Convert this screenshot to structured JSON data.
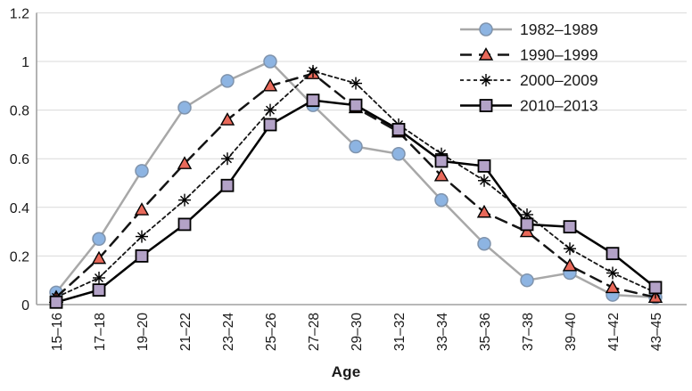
{
  "chart_data": {
    "type": "line",
    "title": "",
    "xlabel": "Age",
    "ylabel": "",
    "ylim": [
      0,
      1.2
    ],
    "ytick_labels": [
      "0",
      "0.2",
      "0.4",
      "0.6",
      "0.8",
      "1",
      "1.2"
    ],
    "yticks": [
      0,
      0.2,
      0.4,
      0.6,
      0.8,
      1,
      1.2
    ],
    "grid": "horizontal",
    "legend_position": "top-right",
    "categories": [
      "15–16",
      "17–18",
      "19–20",
      "21–22",
      "23–24",
      "25–26",
      "27–28",
      "29–30",
      "31–32",
      "33–34",
      "35–36",
      "37–38",
      "39–40",
      "41–42",
      "43–45"
    ],
    "series": [
      {
        "name": "1982–1989",
        "values": [
          0.05,
          0.27,
          0.55,
          0.81,
          0.92,
          1.0,
          0.82,
          0.65,
          0.62,
          0.43,
          0.25,
          0.1,
          0.13,
          0.04,
          0.03
        ],
        "line_color": "#A8A8A8",
        "line_style": "solid",
        "marker": "circle",
        "marker_fill": "#8DB4E2",
        "marker_stroke": "#7F93AC"
      },
      {
        "name": "1990–1999",
        "values": [
          0.03,
          0.19,
          0.39,
          0.58,
          0.76,
          0.9,
          0.95,
          0.81,
          0.71,
          0.53,
          0.38,
          0.3,
          0.16,
          0.07,
          0.03
        ],
        "line_color": "#141414",
        "line_style": "dash",
        "marker": "triangle",
        "marker_fill": "#E8695A",
        "marker_stroke": "#000000"
      },
      {
        "name": "2000–2009",
        "values": [
          0.03,
          0.11,
          0.28,
          0.43,
          0.6,
          0.8,
          0.96,
          0.91,
          0.74,
          0.62,
          0.51,
          0.37,
          0.23,
          0.13,
          0.05
        ],
        "line_color": "#141414",
        "line_style": "dot",
        "marker": "asterisk",
        "marker_fill": "#000000",
        "marker_stroke": "#000000"
      },
      {
        "name": "2010–2013",
        "values": [
          0.01,
          0.06,
          0.2,
          0.33,
          0.49,
          0.74,
          0.84,
          0.82,
          0.72,
          0.59,
          0.57,
          0.33,
          0.32,
          0.21,
          0.07
        ],
        "line_color": "#000000",
        "line_style": "solid",
        "marker": "square",
        "marker_fill": "#B3A2C7",
        "marker_stroke": "#000000"
      }
    ],
    "axis_color": "#A0A0A0",
    "grid_color": "#D9D9D9",
    "text_color": "#1a1a1a"
  }
}
